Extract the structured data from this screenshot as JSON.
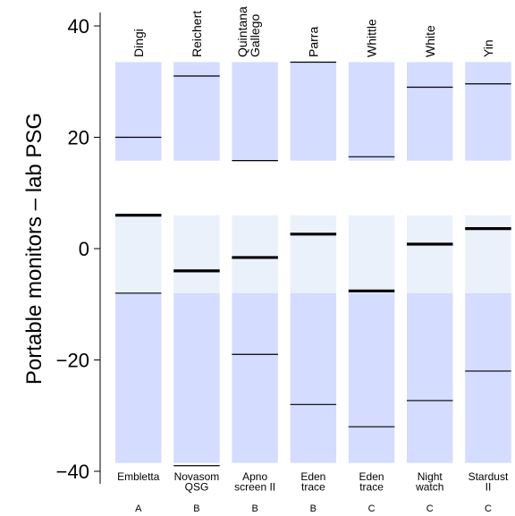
{
  "chart_data": {
    "type": "bar",
    "ylabel": "Portable monitors – lab PSG",
    "ylim": [
      -40.5,
      42.5
    ],
    "yticks": [
      -40,
      -20,
      0,
      20,
      40
    ],
    "shading": {
      "central_band": [
        -8,
        6
      ],
      "outer_band": [
        -38.5,
        33.5
      ],
      "gap": [
        6,
        15.8
      ]
    },
    "colors": {
      "outer": "#d4dcff",
      "central": "#ebf1fb",
      "line": "#000000"
    },
    "studies": [
      {
        "author": "Dingi",
        "device": [
          "Embletta"
        ],
        "grade": "A",
        "mean": 6.0,
        "lower": -8.0,
        "upper": 20.0
      },
      {
        "author": "Reichert",
        "device": [
          "Novasom",
          "QSG"
        ],
        "grade": "B",
        "mean": -4.0,
        "lower": -39.0,
        "upper": 31.0
      },
      {
        "author": "Quintana\nGallego",
        "device": [
          "Apno",
          "screen II"
        ],
        "grade": "B",
        "mean": -1.6,
        "lower": -19.0,
        "upper": 15.8
      },
      {
        "author": "Parra",
        "device": [
          "Eden",
          "trace"
        ],
        "grade": "B",
        "mean": 2.6,
        "lower": -28.0,
        "upper": 33.5
      },
      {
        "author": "Whittle",
        "device": [
          "Eden",
          "trace"
        ],
        "grade": "C",
        "mean": -7.6,
        "lower": -32.0,
        "upper": 16.5
      },
      {
        "author": "White",
        "device": [
          "Night",
          "watch"
        ],
        "grade": "C",
        "mean": 0.8,
        "lower": -27.3,
        "upper": 29.0
      },
      {
        "author": "Yin",
        "device": [
          "Stardust",
          "II"
        ],
        "grade": "C",
        "mean": 3.6,
        "lower": -22.0,
        "upper": 29.6
      }
    ]
  }
}
